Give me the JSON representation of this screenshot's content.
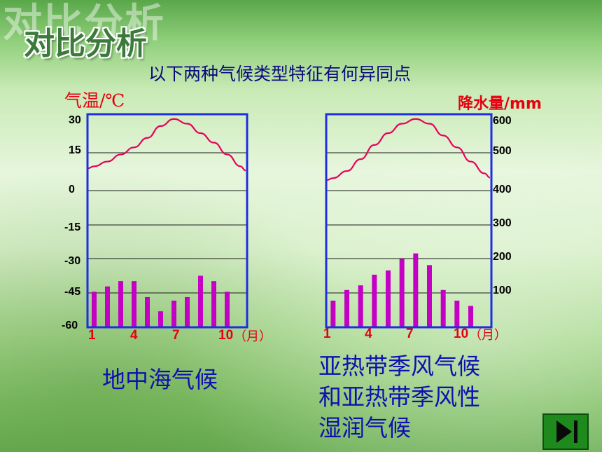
{
  "slide": {
    "title": "对比分析",
    "subtitle": "以下两种气候类型特征有何异同点",
    "next_icon": "next-slide-icon",
    "colors": {
      "temperature_line": "#e6005a",
      "precip_bars": "#c400c4",
      "frame": "#1f2ee0",
      "title_green": "#3b7a3b",
      "caption_blue": "#1010b0"
    }
  },
  "chart_data": [
    {
      "type": "bar",
      "caption": "地中海气候",
      "x": [
        1,
        2,
        3,
        4,
        5,
        6,
        7,
        8,
        9,
        10,
        11,
        12
      ],
      "xticks": [
        "1",
        "4",
        "7",
        "10"
      ],
      "xunit": "（月）",
      "temperature": {
        "ylabel": "气温/℃",
        "yticks": [
          "30",
          "15",
          "0",
          "-15",
          "-30",
          "-45",
          "-60"
        ],
        "ylim": [
          -60,
          30
        ],
        "values": [
          8,
          10,
          13,
          16,
          20,
          25,
          28,
          26,
          22,
          18,
          13,
          8
        ]
      },
      "precipitation": {
        "ylim": [
          0,
          600
        ],
        "values": [
          100,
          115,
          130,
          130,
          85,
          45,
          75,
          85,
          145,
          130,
          100,
          0
        ]
      }
    },
    {
      "type": "bar",
      "caption_lines": [
        "亚热带季风气候",
        "和亚热带季风性",
        "湿润气候"
      ],
      "x": [
        1,
        2,
        3,
        4,
        5,
        6,
        7,
        8,
        9,
        10,
        11,
        12
      ],
      "xticks": [
        "1",
        "4",
        "7",
        "10"
      ],
      "xunit": "（月）",
      "temperature": {
        "ylim": [
          -60,
          30
        ],
        "values": [
          3,
          6,
          11,
          17,
          22,
          26,
          28,
          26,
          21,
          16,
          10,
          5
        ]
      },
      "precipitation": {
        "ylabel": "降水量/mm",
        "yticks": [
          "600",
          "500",
          "400",
          "300",
          "200",
          "100"
        ],
        "ylim": [
          0,
          600
        ],
        "values": [
          75,
          105,
          118,
          148,
          160,
          193,
          208,
          175,
          105,
          75,
          60,
          0
        ]
      }
    }
  ]
}
